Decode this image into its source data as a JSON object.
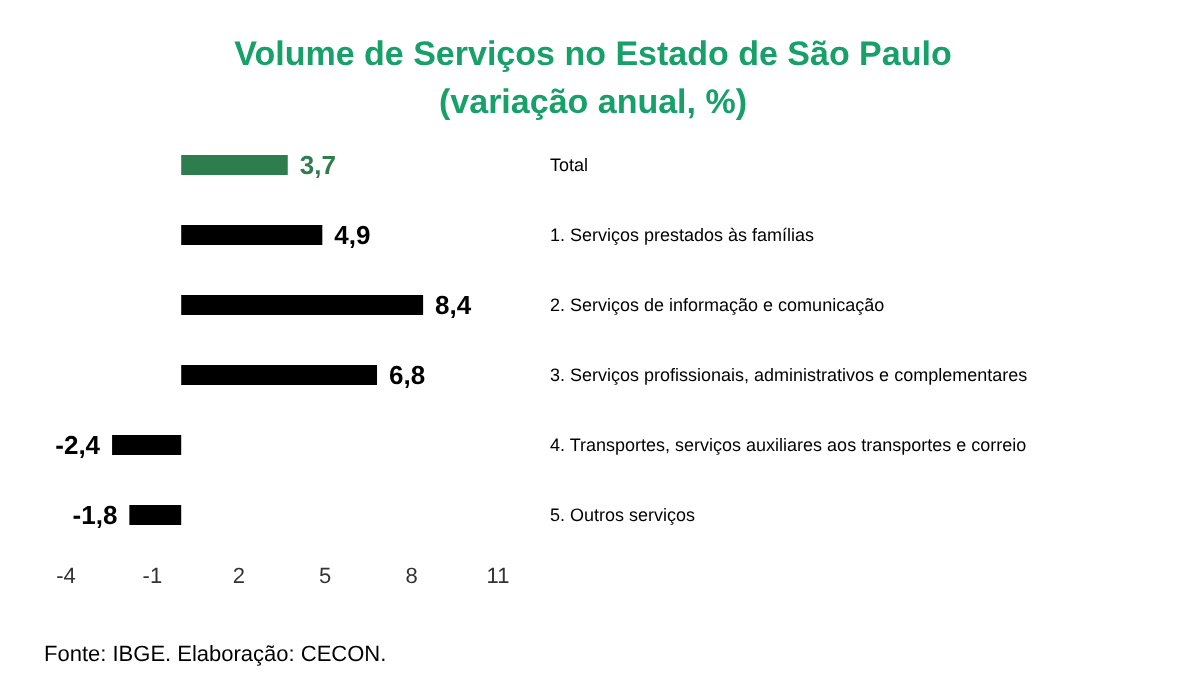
{
  "chart_data": {
    "type": "bar",
    "orientation": "horizontal",
    "title": "Volume de Serviços no Estado de São Paulo\n(variação anual, %)",
    "categories": [
      "Total",
      "1. Serviços prestados às famílias",
      "2. Serviços de informação e comunicação",
      "3. Serviços profissionais, administrativos e complementares",
      "4. Transportes, serviços auxiliares aos transportes e correio",
      "5. Outros serviços"
    ],
    "values": [
      3.7,
      4.9,
      8.4,
      6.8,
      -2.4,
      -1.8
    ],
    "value_labels": [
      "3,7",
      "4,9",
      "8,4",
      "6,8",
      "-2,4",
      "-1,8"
    ],
    "colors": [
      "#2e7d4f",
      "#000000",
      "#000000",
      "#000000",
      "#000000",
      "#000000"
    ],
    "xlim": [
      -4,
      11
    ],
    "xticks": [
      -4,
      -1,
      2,
      5,
      8,
      11
    ],
    "grid": false,
    "annotations": [
      "Fonte: IBGE. Elaboração: CECON."
    ]
  }
}
